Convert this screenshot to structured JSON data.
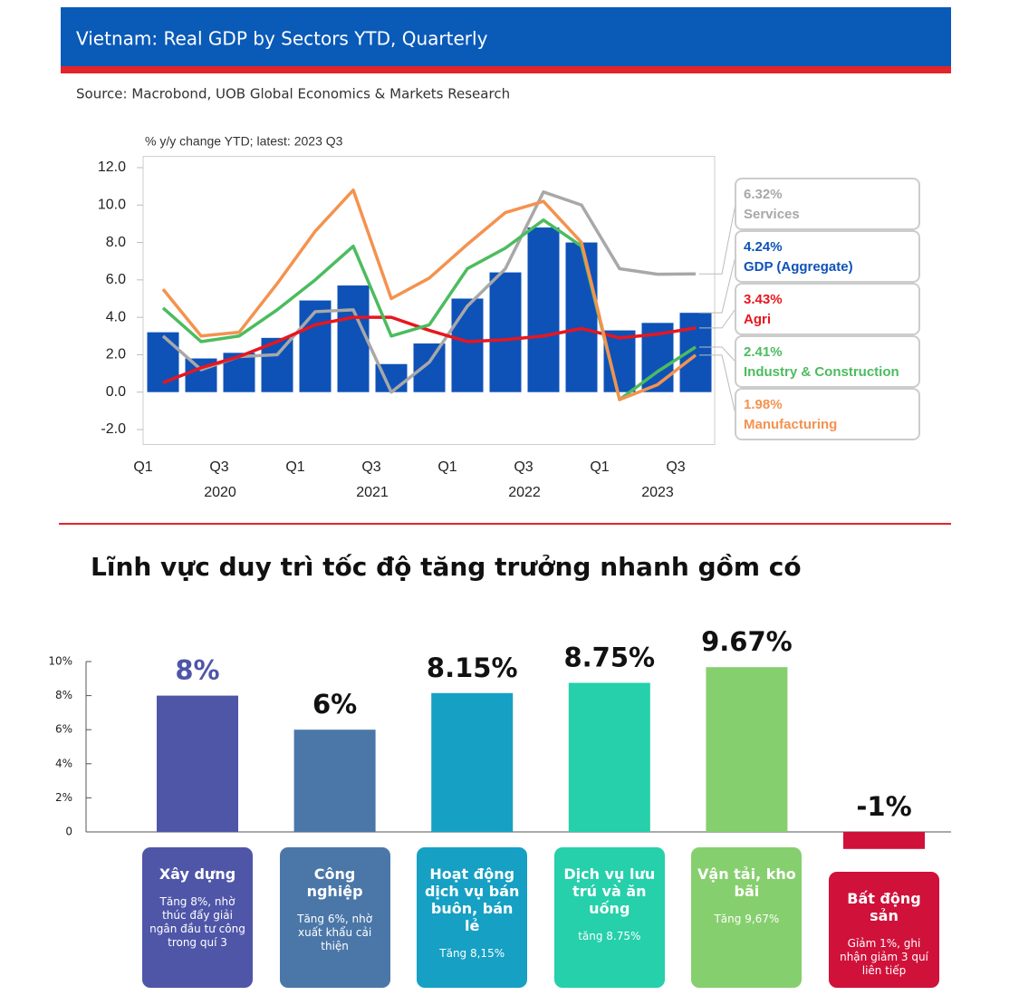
{
  "chart_data": [
    {
      "type": "combo",
      "title": "Vietnam: Real GDP by Sectors YTD, Quarterly",
      "source": "Source: Macrobond, UOB Global Economics & Markets Research",
      "y_label": "% y/y change YTD; latest: 2023 Q3",
      "categories": [
        "Q1",
        null,
        "Q3",
        null,
        "Q1",
        null,
        "Q3",
        null,
        "Q1",
        null,
        "Q3",
        null,
        "Q1",
        null,
        "Q3"
      ],
      "x_groups": [
        "2020",
        "2021",
        "2022",
        "2023"
      ],
      "ylim": [
        -2.8,
        12.6
      ],
      "yticks": [
        {
          "value": 12,
          "label": "12.0"
        },
        {
          "value": 10,
          "label": "10.0"
        },
        {
          "value": 8,
          "label": "8.0"
        },
        {
          "value": 6,
          "label": "6.0"
        },
        {
          "value": 4,
          "label": "4.0"
        },
        {
          "value": 2,
          "label": "2.0"
        },
        {
          "value": 0,
          "label": "0.0"
        },
        {
          "value": -2,
          "label": "-2.0"
        }
      ],
      "series": [
        {
          "name": "Services",
          "type": "line",
          "color": "#a8a8a8",
          "values": [
            3.0,
            1.2,
            1.9,
            2.0,
            4.3,
            4.4,
            0.0,
            1.6,
            4.6,
            6.6,
            10.7,
            10.0,
            6.6,
            6.3,
            6.32
          ],
          "value_labels": [
            null,
            null,
            null,
            null,
            null,
            null,
            null,
            null,
            null,
            null,
            null,
            null,
            null,
            null,
            "6.32%"
          ]
        },
        {
          "name": "GDP (Aggregate)",
          "type": "bar",
          "color": "#0e52b8",
          "values": [
            3.2,
            1.8,
            2.1,
            2.9,
            4.9,
            5.7,
            1.5,
            2.6,
            5.0,
            6.4,
            8.8,
            8.0,
            3.3,
            3.7,
            4.24
          ],
          "value_labels": [
            null,
            null,
            null,
            null,
            null,
            null,
            null,
            null,
            null,
            null,
            null,
            null,
            null,
            null,
            "4.24%"
          ]
        },
        {
          "name": "Agri",
          "type": "line",
          "color": "#e8161e",
          "values": [
            0.5,
            1.3,
            1.9,
            2.7,
            3.6,
            4.0,
            4.0,
            3.3,
            2.7,
            2.8,
            3.0,
            3.4,
            2.9,
            3.1,
            3.43
          ],
          "value_labels": [
            null,
            null,
            null,
            null,
            null,
            null,
            null,
            null,
            null,
            null,
            null,
            null,
            null,
            null,
            "3.43%"
          ]
        },
        {
          "name": "Industry & Construction",
          "type": "line",
          "color": "#4cbc5f",
          "values": [
            4.5,
            2.7,
            3.0,
            4.4,
            6.0,
            7.8,
            3.0,
            3.6,
            6.6,
            7.7,
            9.2,
            7.8,
            -0.4,
            1.1,
            2.41
          ],
          "value_labels": [
            null,
            null,
            null,
            null,
            null,
            null,
            null,
            null,
            null,
            null,
            null,
            null,
            null,
            null,
            "2.41%"
          ]
        },
        {
          "name": "Manufacturing",
          "type": "line",
          "color": "#f4924f",
          "values": [
            5.5,
            3.0,
            3.2,
            5.8,
            8.6,
            10.8,
            5.0,
            6.1,
            7.9,
            9.6,
            10.2,
            8.0,
            -0.4,
            0.4,
            1.98
          ],
          "value_labels": [
            null,
            null,
            null,
            null,
            null,
            null,
            null,
            null,
            null,
            null,
            null,
            null,
            null,
            null,
            "1.98%"
          ]
        }
      ]
    },
    {
      "type": "bar",
      "title": "Lĩnh vực duy trì tốc độ tăng trưởng nhanh gồm có",
      "categories": [
        "Xây dựng",
        "Công nghiệp",
        "Hoạt động dịch vụ bán buôn, bán lẻ",
        "Dịch vụ lưu trú và ăn uống",
        "Vận tải, kho bãi",
        "Bất động sản"
      ],
      "descriptions": [
        "Tăng 8%, nhờ thúc đẩy giải ngân đầu tư công trong quí 3",
        "Tăng 6%, nhờ xuất khẩu cải thiện",
        "Tăng 8,15%",
        "tăng 8.75%",
        "Tăng 9,67%",
        "Gỉảm 1%, ghi nhận giảm 3 quí liên tiếp"
      ],
      "values": [
        8,
        6,
        8.15,
        8.75,
        9.67,
        -1
      ],
      "value_labels": [
        "8%",
        "6%",
        "8.15%",
        "8.75%",
        "9.67%",
        "-1%"
      ],
      "colors": [
        "#4f56a8",
        "#4a77a8",
        "#16a0c4",
        "#25d0aa",
        "#86cf6e",
        "#d0113a"
      ],
      "value_label_colors": [
        "#4f56a8",
        "#111111",
        "#111111",
        "#111111",
        "#111111",
        "#111111"
      ],
      "ylim": [
        0,
        10
      ],
      "yticks": [
        {
          "value": 10,
          "label": "10%"
        },
        {
          "value": 8,
          "label": "8%"
        },
        {
          "value": 6,
          "label": "6%"
        },
        {
          "value": 4,
          "label": "4%"
        },
        {
          "value": 2,
          "label": "2%"
        },
        0
      ]
    }
  ]
}
